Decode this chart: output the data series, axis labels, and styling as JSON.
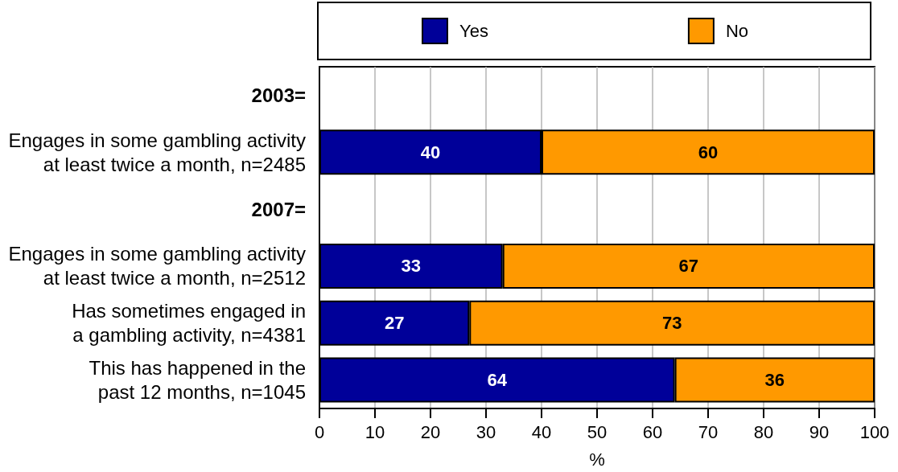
{
  "chart_data": {
    "type": "bar",
    "orientation": "horizontal",
    "stacked": true,
    "categories": [
      "2003=",
      "Engages in some gambling activity\nat least twice a month, n=2485",
      "2007=",
      "Engages in some gambling activity\nat least twice a month, n=2512",
      "Has sometimes engaged in\na gambling activity, n=4381",
      "This has happened in the\npast 12 months, n=1045"
    ],
    "series": [
      {
        "name": "Yes",
        "color": "#000099",
        "values": [
          null,
          40,
          null,
          33,
          27,
          64
        ]
      },
      {
        "name": "No",
        "color": "#ff9900",
        "values": [
          null,
          60,
          null,
          67,
          73,
          36
        ]
      }
    ],
    "xlabel": "%",
    "xlim": [
      0,
      100
    ],
    "xticks": [
      0,
      10,
      20,
      30,
      40,
      50,
      60,
      70,
      80,
      90,
      100
    ],
    "grid": "x",
    "legend": "top",
    "data_labels": true
  }
}
